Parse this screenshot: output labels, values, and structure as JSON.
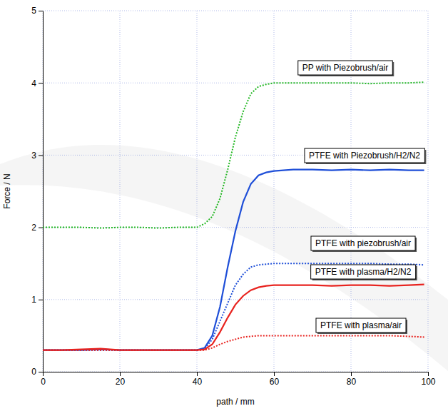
{
  "chart_data": {
    "type": "line",
    "x_label": "path / mm",
    "y_label": "Force / N",
    "x": [
      0,
      5,
      10,
      15,
      20,
      25,
      30,
      35,
      40,
      42,
      44,
      46,
      48,
      50,
      52,
      54,
      56,
      58,
      60,
      65,
      70,
      75,
      80,
      85,
      90,
      95,
      99
    ],
    "xlim": [
      0,
      100
    ],
    "xticks": [
      0,
      20,
      40,
      60,
      80,
      100
    ],
    "ylim": [
      0,
      5
    ],
    "yticks": [
      0,
      1,
      2,
      3,
      4,
      5
    ],
    "grid": true,
    "series": [
      {
        "name": "PP with Piezobrush/air",
        "color": "#22b722",
        "line_style": "dotted",
        "values": [
          2.0,
          2.0,
          2.0,
          1.99,
          2.0,
          2.0,
          1.99,
          2.0,
          2.0,
          2.05,
          2.15,
          2.4,
          2.8,
          3.25,
          3.6,
          3.85,
          3.95,
          3.98,
          4.0,
          4.0,
          4.0,
          4.0,
          4.0,
          3.99,
          4.0,
          4.0,
          4.01
        ]
      },
      {
        "name": "PTFE with Piezobrush/H2/N2",
        "color": "#1f4fd8",
        "line_style": "solid",
        "values": [
          0.3,
          0.3,
          0.3,
          0.31,
          0.3,
          0.3,
          0.3,
          0.3,
          0.3,
          0.33,
          0.5,
          0.9,
          1.45,
          1.95,
          2.35,
          2.6,
          2.72,
          2.76,
          2.78,
          2.8,
          2.8,
          2.79,
          2.8,
          2.79,
          2.8,
          2.79,
          2.79
        ]
      },
      {
        "name": "PTFE with piezobrush/air",
        "color": "#1f4fd8",
        "line_style": "dotted",
        "values": [
          0.3,
          0.3,
          0.3,
          0.3,
          0.3,
          0.3,
          0.3,
          0.3,
          0.3,
          0.32,
          0.45,
          0.7,
          0.95,
          1.2,
          1.35,
          1.45,
          1.48,
          1.49,
          1.5,
          1.5,
          1.5,
          1.5,
          1.5,
          1.5,
          1.49,
          1.49,
          1.48
        ]
      },
      {
        "name": "PTFE with plasma/H2/N2",
        "color": "#e8231f",
        "line_style": "solid",
        "values": [
          0.3,
          0.3,
          0.31,
          0.32,
          0.3,
          0.3,
          0.3,
          0.3,
          0.3,
          0.31,
          0.38,
          0.55,
          0.75,
          0.93,
          1.05,
          1.13,
          1.17,
          1.19,
          1.2,
          1.2,
          1.2,
          1.19,
          1.2,
          1.2,
          1.19,
          1.2,
          1.21
        ]
      },
      {
        "name": "PTFE with plasma/air",
        "color": "#e8231f",
        "line_style": "dotted",
        "values": [
          0.3,
          0.3,
          0.3,
          0.3,
          0.3,
          0.3,
          0.3,
          0.3,
          0.3,
          0.3,
          0.33,
          0.38,
          0.42,
          0.45,
          0.48,
          0.49,
          0.5,
          0.5,
          0.5,
          0.5,
          0.5,
          0.5,
          0.5,
          0.5,
          0.5,
          0.49,
          0.48
        ]
      }
    ]
  }
}
